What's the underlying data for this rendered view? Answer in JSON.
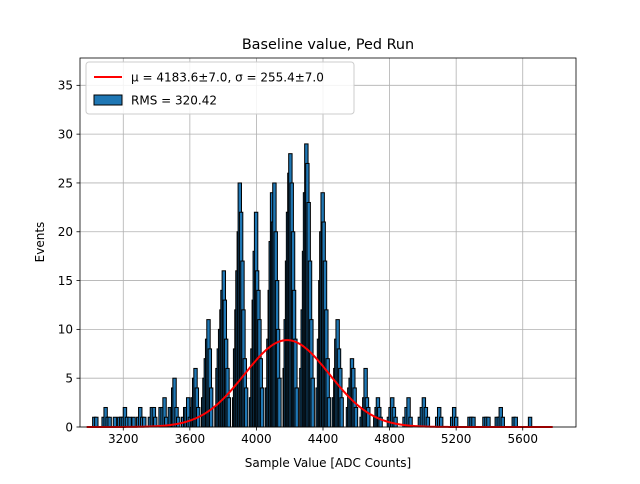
{
  "chart_data": {
    "type": "bar",
    "title": "Baseline value, Ped Run",
    "xlabel": "Sample Value [ADC Counts]",
    "ylabel": "Events",
    "xlim": [
      2940,
      5920
    ],
    "ylim": [
      0,
      37.8
    ],
    "xticks": [
      3200,
      3600,
      4000,
      4400,
      4800,
      5200,
      5600
    ],
    "yticks": [
      0,
      5,
      10,
      15,
      20,
      25,
      30,
      35
    ],
    "grid": true,
    "legend": {
      "position": "top-left",
      "entries": [
        {
          "label": "μ = 4183.6±7.0, σ = 255.4±7.0",
          "kind": "line",
          "color": "#ff0000"
        },
        {
          "label": "RMS = 320.42",
          "kind": "patch",
          "color": "#1f77b4"
        }
      ]
    },
    "histogram": {
      "color": "#1f77b4",
      "edgecolor": "#000000",
      "bins": [
        [
          3026,
          1
        ],
        [
          3038,
          1
        ],
        [
          3082,
          1
        ],
        [
          3094,
          2
        ],
        [
          3106,
          1
        ],
        [
          3118,
          1
        ],
        [
          3150,
          1
        ],
        [
          3176,
          1
        ],
        [
          3188,
          1
        ],
        [
          3198,
          1
        ],
        [
          3210,
          2
        ],
        [
          3222,
          1
        ],
        [
          3238,
          1
        ],
        [
          3262,
          1
        ],
        [
          3290,
          1
        ],
        [
          3302,
          2
        ],
        [
          3314,
          1
        ],
        [
          3326,
          1
        ],
        [
          3360,
          1
        ],
        [
          3372,
          2
        ],
        [
          3384,
          2
        ],
        [
          3392,
          1
        ],
        [
          3424,
          2
        ],
        [
          3436,
          2
        ],
        [
          3448,
          3
        ],
        [
          3458,
          1
        ],
        [
          3480,
          2
        ],
        [
          3492,
          2
        ],
        [
          3500,
          4
        ],
        [
          3508,
          5
        ],
        [
          3520,
          2
        ],
        [
          3530,
          1
        ],
        [
          3560,
          1
        ],
        [
          3572,
          2
        ],
        [
          3580,
          2
        ],
        [
          3590,
          3
        ],
        [
          3600,
          1
        ],
        [
          3612,
          2
        ],
        [
          3618,
          3
        ],
        [
          3626,
          5
        ],
        [
          3634,
          6
        ],
        [
          3642,
          4
        ],
        [
          3650,
          2
        ],
        [
          3680,
          3
        ],
        [
          3688,
          5
        ],
        [
          3696,
          7
        ],
        [
          3704,
          9
        ],
        [
          3712,
          11
        ],
        [
          3720,
          8
        ],
        [
          3728,
          4
        ],
        [
          3760,
          2
        ],
        [
          3766,
          6
        ],
        [
          3774,
          8
        ],
        [
          3782,
          10
        ],
        [
          3790,
          12
        ],
        [
          3796,
          14
        ],
        [
          3804,
          16
        ],
        [
          3810,
          13
        ],
        [
          3818,
          9
        ],
        [
          3826,
          6
        ],
        [
          3834,
          3
        ],
        [
          3866,
          3
        ],
        [
          3872,
          8
        ],
        [
          3880,
          12
        ],
        [
          3886,
          16
        ],
        [
          3894,
          20
        ],
        [
          3900,
          25
        ],
        [
          3908,
          22
        ],
        [
          3916,
          17
        ],
        [
          3922,
          12
        ],
        [
          3930,
          7
        ],
        [
          3938,
          4
        ],
        [
          3968,
          3
        ],
        [
          3976,
          8
        ],
        [
          3984,
          13
        ],
        [
          3990,
          18
        ],
        [
          3998,
          22
        ],
        [
          4004,
          16
        ],
        [
          4012,
          14
        ],
        [
          4018,
          11
        ],
        [
          4026,
          7
        ],
        [
          4034,
          4
        ],
        [
          4064,
          4
        ],
        [
          4072,
          9
        ],
        [
          4080,
          14
        ],
        [
          4086,
          19
        ],
        [
          4094,
          24
        ],
        [
          4100,
          21
        ],
        [
          4108,
          25
        ],
        [
          4116,
          20
        ],
        [
          4124,
          15
        ],
        [
          4130,
          10
        ],
        [
          4138,
          5
        ],
        [
          4170,
          6
        ],
        [
          4176,
          11
        ],
        [
          4184,
          17
        ],
        [
          4190,
          22
        ],
        [
          4198,
          26
        ],
        [
          4204,
          28
        ],
        [
          4212,
          25
        ],
        [
          4220,
          20
        ],
        [
          4226,
          14
        ],
        [
          4234,
          9
        ],
        [
          4242,
          4
        ],
        [
          4270,
          6
        ],
        [
          4278,
          12
        ],
        [
          4286,
          18
        ],
        [
          4292,
          24
        ],
        [
          4300,
          29
        ],
        [
          4306,
          27
        ],
        [
          4314,
          23
        ],
        [
          4322,
          17
        ],
        [
          4330,
          11
        ],
        [
          4338,
          5
        ],
        [
          4368,
          4
        ],
        [
          4376,
          9
        ],
        [
          4384,
          15
        ],
        [
          4390,
          20
        ],
        [
          4398,
          24
        ],
        [
          4404,
          21
        ],
        [
          4412,
          17
        ],
        [
          4420,
          12
        ],
        [
          4428,
          7
        ],
        [
          4436,
          3
        ],
        [
          4466,
          3
        ],
        [
          4474,
          6
        ],
        [
          4480,
          9
        ],
        [
          4488,
          11
        ],
        [
          4496,
          8
        ],
        [
          4504,
          6
        ],
        [
          4512,
          3
        ],
        [
          4550,
          2
        ],
        [
          4558,
          4
        ],
        [
          4566,
          5
        ],
        [
          4574,
          7
        ],
        [
          4582,
          6
        ],
        [
          4590,
          4
        ],
        [
          4598,
          2
        ],
        [
          4632,
          1
        ],
        [
          4640,
          2
        ],
        [
          4648,
          3
        ],
        [
          4656,
          6
        ],
        [
          4664,
          3
        ],
        [
          4672,
          2
        ],
        [
          4714,
          1
        ],
        [
          4722,
          2
        ],
        [
          4730,
          3
        ],
        [
          4738,
          2
        ],
        [
          4746,
          1
        ],
        [
          4796,
          1
        ],
        [
          4806,
          2
        ],
        [
          4816,
          3
        ],
        [
          4826,
          2
        ],
        [
          4836,
          1
        ],
        [
          4890,
          1
        ],
        [
          4902,
          2
        ],
        [
          4914,
          3
        ],
        [
          4926,
          1
        ],
        [
          4982,
          1
        ],
        [
          4994,
          2
        ],
        [
          5006,
          3
        ],
        [
          5018,
          2
        ],
        [
          5030,
          1
        ],
        [
          5086,
          1
        ],
        [
          5098,
          2
        ],
        [
          5110,
          1
        ],
        [
          5176,
          1
        ],
        [
          5188,
          2
        ],
        [
          5200,
          1
        ],
        [
          5280,
          1
        ],
        [
          5292,
          1
        ],
        [
          5304,
          1
        ],
        [
          5370,
          1
        ],
        [
          5382,
          1
        ],
        [
          5394,
          1
        ],
        [
          5444,
          1
        ],
        [
          5456,
          1
        ],
        [
          5468,
          2
        ],
        [
          5480,
          1
        ],
        [
          5546,
          1
        ],
        [
          5558,
          1
        ],
        [
          5644,
          1
        ]
      ]
    },
    "fit": {
      "type": "gaussian",
      "color": "#ff0000",
      "mu": 4183.6,
      "sigma": 255.4,
      "amplitude": 8.9,
      "x_range": [
        2980,
        5780
      ]
    }
  }
}
